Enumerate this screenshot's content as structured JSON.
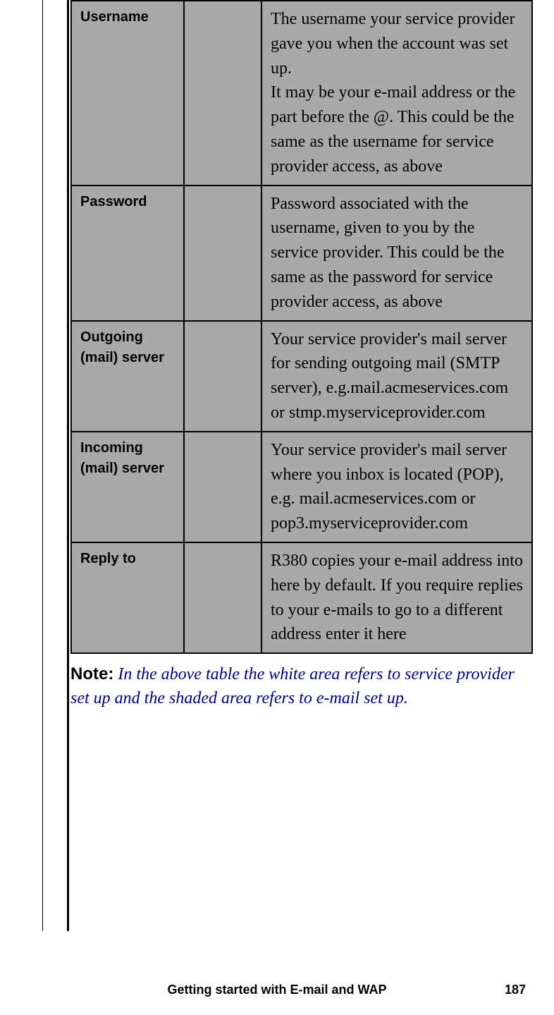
{
  "table": {
    "rows": [
      {
        "label": "Username",
        "description": "The username your service provider gave you when the account was set up.\nIt may be your e-mail address or the part before the @. This could be the same as the username for service provider access, as above"
      },
      {
        "label": "Password",
        "description": "Password associated with the username, given to you by the service provider. This could be the same as the password for service provider access, as above"
      },
      {
        "label": "Outgoing (mail) server",
        "description": "Your service provider's mail server for sending outgoing mail (SMTP server), e.g.mail.acmeservices.com or stmp.myserviceprovider.com"
      },
      {
        "label": "Incoming (mail) server",
        "description": "Your service provider's mail server where you inbox is located (POP), e.g. mail.acmeservices.com or pop3.myserviceprovider.com"
      },
      {
        "label": "Reply to",
        "description": "R380 copies your e-mail address into here by default. If you require replies to your e-mails to go to a different address enter it here"
      }
    ]
  },
  "note": {
    "label": "Note:",
    "text": "In the above table the white area refers to service provider set up and the shaded area refers to e-mail set up."
  },
  "footer": {
    "title": "Getting started with E-mail and WAP",
    "page_number": "187"
  },
  "colors": {
    "shaded_bg": "#a9a9a9",
    "note_color": "#000080",
    "border": "#000000"
  }
}
